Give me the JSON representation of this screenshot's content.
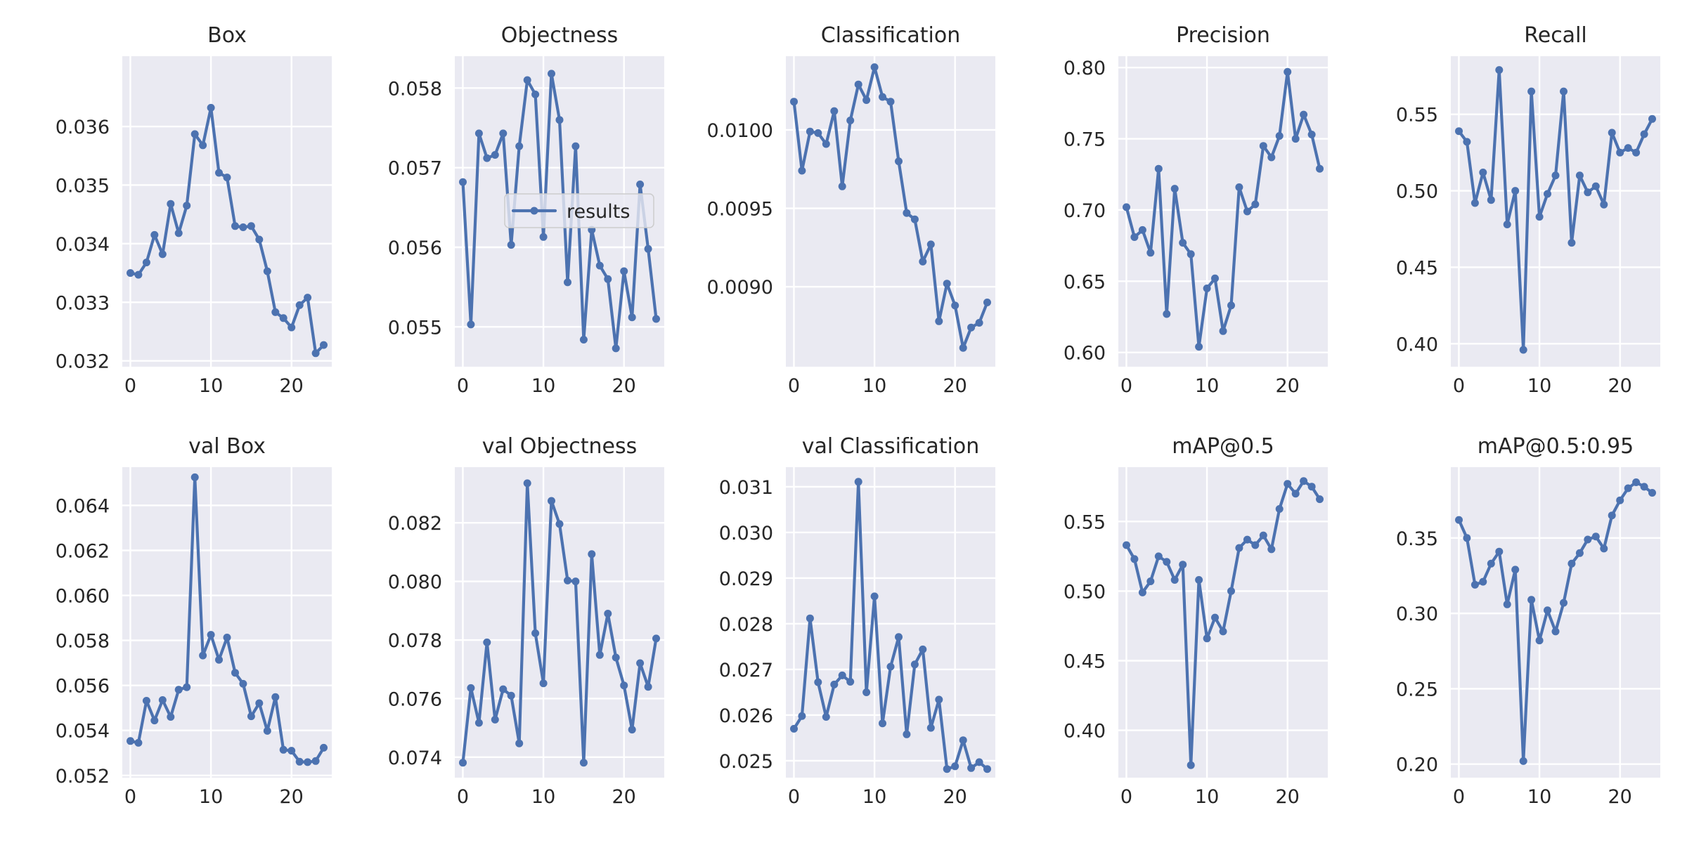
{
  "figure": {
    "background": "#ffffff",
    "axes_facecolor": "#eaeaf2",
    "grid_color": "#ffffff",
    "line_color": "#4c72b0"
  },
  "chart_data": [
    {
      "type": "line",
      "title": "Box",
      "grid": true,
      "xlim": [
        -1,
        25
      ],
      "ylim": [
        0.0319,
        0.0372
      ],
      "xticks": [
        "0",
        "10",
        "20"
      ],
      "yticks": [
        "0.032",
        "0.033",
        "0.034",
        "0.035",
        "0.036"
      ],
      "series": [
        {
          "x": [
            0,
            1,
            2,
            3,
            4,
            5,
            6,
            7,
            8,
            9,
            10,
            11,
            12,
            13,
            14,
            15,
            16,
            17,
            18,
            19,
            20,
            21,
            22,
            23,
            24
          ],
          "values": [
            0.0335,
            0.03347,
            0.03368,
            0.03415,
            0.03382,
            0.03468,
            0.03418,
            0.03465,
            0.03587,
            0.03568,
            0.03632,
            0.03521,
            0.03513,
            0.0343,
            0.03428,
            0.0343,
            0.03407,
            0.03353,
            0.03283,
            0.03273,
            0.03257,
            0.03295,
            0.03308,
            0.03213,
            0.03227
          ]
        }
      ]
    },
    {
      "type": "line",
      "title": "Objectness",
      "grid": true,
      "xlim": [
        -1,
        25
      ],
      "ylim": [
        0.0545,
        0.0584
      ],
      "xticks": [
        "0",
        "10",
        "20"
      ],
      "yticks": [
        "0.055",
        "0.056",
        "0.057",
        "0.058"
      ],
      "legend": {
        "entries": [
          "results"
        ],
        "placement": "center-right"
      },
      "series": [
        {
          "name": "results",
          "x": [
            0,
            1,
            2,
            3,
            4,
            5,
            6,
            7,
            8,
            9,
            10,
            11,
            12,
            13,
            14,
            15,
            16,
            17,
            18,
            19,
            20,
            21,
            22,
            23,
            24
          ],
          "values": [
            0.05682,
            0.05503,
            0.05743,
            0.05712,
            0.05716,
            0.05743,
            0.05603,
            0.05727,
            0.0581,
            0.05792,
            0.05613,
            0.05818,
            0.0576,
            0.05556,
            0.05727,
            0.05484,
            0.05622,
            0.05577,
            0.0556,
            0.05473,
            0.0557,
            0.05512,
            0.05679,
            0.05598,
            0.0551
          ]
        }
      ]
    },
    {
      "type": "line",
      "title": "Classification",
      "grid": true,
      "xlim": [
        -1,
        25
      ],
      "ylim": [
        0.00849,
        0.01047
      ],
      "xticks": [
        "0",
        "10",
        "20"
      ],
      "yticks": [
        "0.0090",
        "0.0095",
        "0.0100"
      ],
      "series": [
        {
          "x": [
            0,
            1,
            2,
            3,
            4,
            5,
            6,
            7,
            8,
            9,
            10,
            11,
            12,
            13,
            14,
            15,
            16,
            17,
            18,
            19,
            20,
            21,
            22,
            23,
            24
          ],
          "values": [
            0.01018,
            0.00974,
            0.00999,
            0.00998,
            0.00991,
            0.01012,
            0.00964,
            0.01006,
            0.01029,
            0.01019,
            0.0104,
            0.01021,
            0.01018,
            0.0098,
            0.00947,
            0.00943,
            0.00916,
            0.00927,
            0.00878,
            0.00902,
            0.00888,
            0.00861,
            0.00874,
            0.00877,
            0.0089
          ]
        }
      ]
    },
    {
      "type": "line",
      "title": "Precision",
      "grid": true,
      "xlim": [
        -1,
        25
      ],
      "ylim": [
        0.59,
        0.808
      ],
      "xticks": [
        "0",
        "10",
        "20"
      ],
      "yticks": [
        "0.60",
        "0.65",
        "0.70",
        "0.75",
        "0.80"
      ],
      "series": [
        {
          "x": [
            0,
            1,
            2,
            3,
            4,
            5,
            6,
            7,
            8,
            9,
            10,
            11,
            12,
            13,
            14,
            15,
            16,
            17,
            18,
            19,
            20,
            21,
            22,
            23,
            24
          ],
          "values": [
            0.702,
            0.681,
            0.686,
            0.67,
            0.729,
            0.627,
            0.715,
            0.677,
            0.669,
            0.604,
            0.645,
            0.652,
            0.615,
            0.633,
            0.716,
            0.699,
            0.704,
            0.745,
            0.737,
            0.752,
            0.797,
            0.75,
            0.767,
            0.753,
            0.729
          ]
        }
      ]
    },
    {
      "type": "line",
      "title": "Recall",
      "grid": true,
      "xlim": [
        -1,
        25
      ],
      "ylim": [
        0.385,
        0.588
      ],
      "xticks": [
        "0",
        "10",
        "20"
      ],
      "yticks": [
        "0.40",
        "0.45",
        "0.50",
        "0.55"
      ],
      "series": [
        {
          "x": [
            0,
            1,
            2,
            3,
            4,
            5,
            6,
            7,
            8,
            9,
            10,
            11,
            12,
            13,
            14,
            15,
            16,
            17,
            18,
            19,
            20,
            21,
            22,
            23,
            24
          ],
          "values": [
            0.539,
            0.532,
            0.492,
            0.512,
            0.494,
            0.579,
            0.478,
            0.5,
            0.396,
            0.565,
            0.483,
            0.498,
            0.51,
            0.565,
            0.466,
            0.51,
            0.499,
            0.503,
            0.491,
            0.538,
            0.525,
            0.528,
            0.525,
            0.537,
            0.547
          ]
        }
      ]
    },
    {
      "type": "line",
      "title": "val Box",
      "grid": true,
      "xlim": [
        -1,
        25
      ],
      "ylim": [
        0.0519,
        0.0657
      ],
      "xticks": [
        "0",
        "10",
        "20"
      ],
      "yticks": [
        "0.052",
        "0.054",
        "0.056",
        "0.058",
        "0.060",
        "0.062",
        "0.064"
      ],
      "series": [
        {
          "x": [
            0,
            1,
            2,
            3,
            4,
            5,
            6,
            7,
            8,
            9,
            10,
            11,
            12,
            13,
            14,
            15,
            16,
            17,
            18,
            19,
            20,
            21,
            22,
            23,
            24
          ],
          "values": [
            0.05353,
            0.05345,
            0.05532,
            0.05444,
            0.05535,
            0.0546,
            0.05581,
            0.05592,
            0.06525,
            0.05733,
            0.05825,
            0.05714,
            0.05813,
            0.05656,
            0.05607,
            0.05463,
            0.05521,
            0.05398,
            0.05548,
            0.05314,
            0.0531,
            0.05261,
            0.05259,
            0.05264,
            0.05323
          ]
        }
      ]
    },
    {
      "type": "line",
      "title": "val Objectness",
      "grid": true,
      "xlim": [
        -1,
        25
      ],
      "ylim": [
        0.0733,
        0.0839
      ],
      "xticks": [
        "0",
        "10",
        "20"
      ],
      "yticks": [
        "0.074",
        "0.076",
        "0.078",
        "0.080",
        "0.082"
      ],
      "series": [
        {
          "x": [
            0,
            1,
            2,
            3,
            4,
            5,
            6,
            7,
            8,
            9,
            10,
            11,
            12,
            13,
            14,
            15,
            16,
            17,
            18,
            19,
            20,
            21,
            22,
            23,
            24
          ],
          "values": [
            0.07381,
            0.07636,
            0.07517,
            0.07792,
            0.07528,
            0.07632,
            0.0761,
            0.07447,
            0.08335,
            0.07823,
            0.07652,
            0.08275,
            0.08196,
            0.08003,
            0.08,
            0.07381,
            0.08093,
            0.07749,
            0.0789,
            0.0774,
            0.07645,
            0.07494,
            0.07721,
            0.0764,
            0.07805
          ]
        }
      ]
    },
    {
      "type": "line",
      "title": "val Classification",
      "grid": true,
      "xlim": [
        -1,
        25
      ],
      "ylim": [
        0.02463,
        0.03143
      ],
      "xticks": [
        "0",
        "10",
        "20"
      ],
      "yticks": [
        "0.025",
        "0.026",
        "0.027",
        "0.028",
        "0.029",
        "0.030",
        "0.031"
      ],
      "series": [
        {
          "x": [
            0,
            1,
            2,
            3,
            4,
            5,
            6,
            7,
            8,
            9,
            10,
            11,
            12,
            13,
            14,
            15,
            16,
            17,
            18,
            19,
            20,
            21,
            22,
            23,
            24
          ],
          "values": [
            0.0257,
            0.02598,
            0.02812,
            0.02672,
            0.02596,
            0.02667,
            0.02687,
            0.02673,
            0.03111,
            0.0265,
            0.0286,
            0.02582,
            0.02706,
            0.02771,
            0.02558,
            0.02711,
            0.02744,
            0.02572,
            0.02634,
            0.02482,
            0.02488,
            0.02545,
            0.02484,
            0.02497,
            0.02482
          ]
        }
      ]
    },
    {
      "type": "line",
      "title": "mAP@0.5",
      "grid": true,
      "xlim": [
        -1,
        25
      ],
      "ylim": [
        0.366,
        0.589
      ],
      "xticks": [
        "0",
        "10",
        "20"
      ],
      "yticks": [
        "0.40",
        "0.45",
        "0.50",
        "0.55"
      ],
      "series": [
        {
          "x": [
            0,
            1,
            2,
            3,
            4,
            5,
            6,
            7,
            8,
            9,
            10,
            11,
            12,
            13,
            14,
            15,
            16,
            17,
            18,
            19,
            20,
            21,
            22,
            23,
            24
          ],
          "values": [
            0.533,
            0.523,
            0.499,
            0.507,
            0.525,
            0.521,
            0.508,
            0.519,
            0.375,
            0.508,
            0.466,
            0.481,
            0.471,
            0.5,
            0.531,
            0.537,
            0.533,
            0.54,
            0.53,
            0.559,
            0.577,
            0.57,
            0.579,
            0.575,
            0.566
          ]
        }
      ]
    },
    {
      "type": "line",
      "title": "mAP@0.5:0.95",
      "grid": true,
      "xlim": [
        -1,
        25
      ],
      "ylim": [
        0.191,
        0.397
      ],
      "xticks": [
        "0",
        "10",
        "20"
      ],
      "yticks": [
        "0.20",
        "0.25",
        "0.30",
        "0.35"
      ],
      "series": [
        {
          "x": [
            0,
            1,
            2,
            3,
            4,
            5,
            6,
            7,
            8,
            9,
            10,
            11,
            12,
            13,
            14,
            15,
            16,
            17,
            18,
            19,
            20,
            21,
            22,
            23,
            24
          ],
          "values": [
            0.362,
            0.35,
            0.319,
            0.321,
            0.333,
            0.341,
            0.306,
            0.329,
            0.202,
            0.309,
            0.282,
            0.302,
            0.288,
            0.307,
            0.333,
            0.34,
            0.349,
            0.351,
            0.343,
            0.365,
            0.375,
            0.383,
            0.387,
            0.384,
            0.38
          ]
        }
      ]
    }
  ]
}
